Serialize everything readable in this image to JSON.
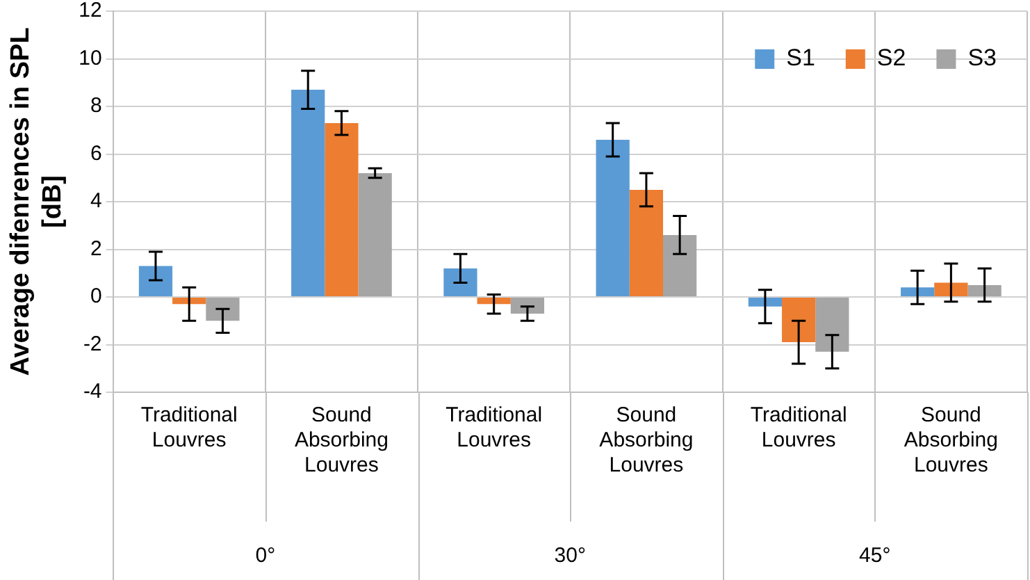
{
  "chart_data": {
    "type": "bar",
    "ylabel": "Average difenrences in SPL [dB]",
    "categories": [
      "Traditional Louvres",
      "Sound Absorbing Louvres",
      "Traditional Louvres",
      "Sound Absorbing Louvres",
      "Traditional Louvres",
      "Sound Absorbing Louvres"
    ],
    "series": [
      {
        "name": "S1",
        "color": "#5b9bd5",
        "values": [
          1.3,
          8.7,
          1.2,
          6.6,
          -0.4,
          0.4
        ],
        "errors": [
          0.6,
          0.8,
          0.6,
          0.7,
          0.7,
          0.7
        ]
      },
      {
        "name": "S2",
        "color": "#ed7d31",
        "values": [
          -0.3,
          7.3,
          -0.3,
          4.5,
          -1.9,
          0.6
        ],
        "errors": [
          0.7,
          0.5,
          0.4,
          0.7,
          0.9,
          0.8
        ]
      },
      {
        "name": "S3",
        "color": "#a5a5a5",
        "values": [
          -1.0,
          5.2,
          -0.7,
          2.6,
          -2.3,
          0.5
        ],
        "errors": [
          0.5,
          0.2,
          0.3,
          0.8,
          0.7,
          0.7
        ]
      }
    ],
    "annotations": [
      "0°",
      "30°",
      "45°"
    ],
    "ylim": [
      -4,
      12
    ],
    "yticks": [
      -4,
      -2,
      0,
      2,
      4,
      6,
      8,
      10,
      12
    ],
    "grid": true,
    "legend": "top right"
  }
}
